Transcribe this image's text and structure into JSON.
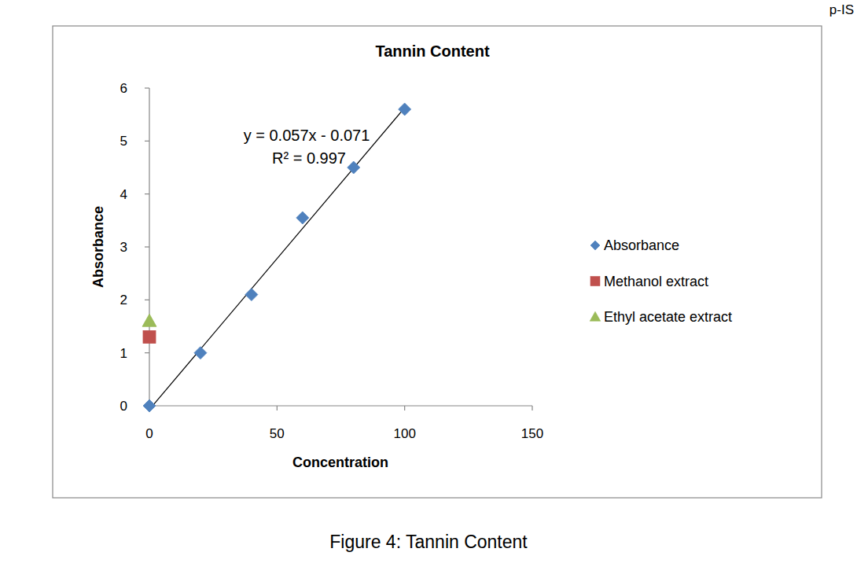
{
  "chart_data": {
    "type": "scatter",
    "title": "Tannin Content",
    "x_label": "Concentration",
    "y_label": "Absorbance",
    "xlim": [
      0,
      150
    ],
    "xticks": [
      0,
      50,
      100,
      150
    ],
    "ylim": [
      0,
      6
    ],
    "yticks": [
      0,
      1,
      2,
      3,
      4,
      5,
      6
    ],
    "grid": false,
    "legend": "right",
    "series": [
      {
        "name": "Absorbance",
        "color": "#4f81bd",
        "marker": "diamond",
        "x": [
          0,
          20,
          40,
          60,
          80,
          100
        ],
        "values": [
          0,
          1.0,
          2.1,
          3.55,
          4.5,
          5.6
        ]
      },
      {
        "name": "Methanol extract",
        "color": "#c0504d",
        "marker": "square",
        "x": [
          0
        ],
        "values": [
          1.3
        ]
      },
      {
        "name": "Ethyl acetate extract",
        "color": "#9bbb59",
        "marker": "triangle",
        "x": [
          0
        ],
        "values": [
          1.6
        ]
      }
    ],
    "trendline": {
      "slope": 0.057,
      "intercept": -0.071,
      "x": [
        0,
        100
      ],
      "color": "#000000",
      "label": "y = 0.057x - 0.071",
      "r2_label": "R² = 0.997"
    },
    "caption": "Figure 4: Tannin Content",
    "page_mark": "p-IS"
  }
}
